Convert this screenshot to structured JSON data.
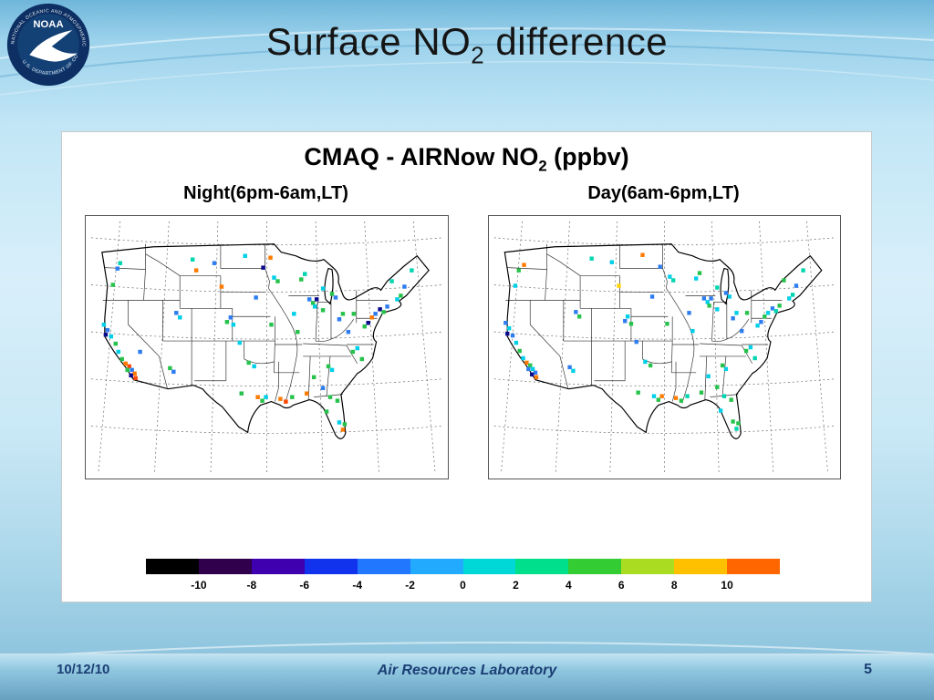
{
  "slide": {
    "title_prefix": "Surface NO",
    "title_sub": "2",
    "title_suffix": " difference"
  },
  "logo": {
    "text": "NOAA",
    "ring_top": "NATIONAL OCEANIC AND ATMOSPHERIC ADMINISTRATION",
    "ring_bottom": "U.S. DEPARTMENT OF COMMERCE"
  },
  "figure": {
    "title_prefix": "CMAQ - AIRNow NO",
    "title_sub": "2",
    "title_suffix": " (ppbv)"
  },
  "footer": {
    "date": "10/12/10",
    "center": "Air Resources Laboratory",
    "page": "5"
  },
  "chart_data": {
    "type": "scatter",
    "title": "CMAQ - AIRNow NO2 (ppbv)",
    "panels": [
      {
        "id": "night",
        "label": "Night(6pm-6am,LT)",
        "points": [
          [
            38,
            52,
            "#00d5b0"
          ],
          [
            35,
            58,
            "#2e7df0"
          ],
          [
            30,
            76,
            "#27c24c"
          ],
          [
            20,
            120,
            "#00cfe8"
          ],
          [
            24,
            126,
            "#2e7df0"
          ],
          [
            22,
            131,
            "#0a0a8c"
          ],
          [
            28,
            133,
            "#00cfe8"
          ],
          [
            33,
            141,
            "#27c24c"
          ],
          [
            36,
            150,
            "#00cfe8"
          ],
          [
            40,
            158,
            "#27c24c"
          ],
          [
            44,
            163,
            "#ff7a00"
          ],
          [
            48,
            166,
            "#ff4500"
          ],
          [
            46,
            170,
            "#27c24c"
          ],
          [
            51,
            170,
            "#2e7df0"
          ],
          [
            54,
            174,
            "#ff7a00"
          ],
          [
            50,
            176,
            "#0a0a8c"
          ],
          [
            55,
            179,
            "#ff4500"
          ],
          [
            60,
            150,
            "#2e7df0"
          ],
          [
            93,
            168,
            "#27c24c"
          ],
          [
            97,
            172,
            "#2e7df0"
          ],
          [
            100,
            107,
            "#2e7df0"
          ],
          [
            104,
            112,
            "#00cfe8"
          ],
          [
            160,
            112,
            "#2e7df0"
          ],
          [
            156,
            117,
            "#27c24c"
          ],
          [
            163,
            120,
            "#00cfe8"
          ],
          [
            118,
            48,
            "#00d5b0"
          ],
          [
            122,
            60,
            "#ff7a00"
          ],
          [
            142,
            52,
            "#2e7df0"
          ],
          [
            176,
            44,
            "#00cfe8"
          ],
          [
            196,
            57,
            "#0a0a8c"
          ],
          [
            204,
            46,
            "#ff7a00"
          ],
          [
            208,
            68,
            "#00cfe8"
          ],
          [
            212,
            72,
            "#27c24c"
          ],
          [
            188,
            90,
            "#2e7df0"
          ],
          [
            150,
            78,
            "#ff7a00"
          ],
          [
            205,
            120,
            "#27c24c"
          ],
          [
            234,
            128,
            "#27c24c"
          ],
          [
            230,
            108,
            "#00cfe8"
          ],
          [
            247,
            92,
            "#2e7df0"
          ],
          [
            251,
            96,
            "#27c24c"
          ],
          [
            255,
            92,
            "#0a0a8c"
          ],
          [
            253,
            100,
            "#00cfe8"
          ],
          [
            262,
            104,
            "#27c24c"
          ],
          [
            170,
            140,
            "#00cfe8"
          ],
          [
            180,
            162,
            "#27c24c"
          ],
          [
            186,
            166,
            "#00cfe8"
          ],
          [
            172,
            196,
            "#27c24c"
          ],
          [
            190,
            200,
            "#ff7a00"
          ],
          [
            195,
            204,
            "#27c24c"
          ],
          [
            199,
            200,
            "#00cfe8"
          ],
          [
            215,
            202,
            "#ff7a00"
          ],
          [
            221,
            205,
            "#ff4500"
          ],
          [
            228,
            200,
            "#27c24c"
          ],
          [
            244,
            196,
            "#ff7a00"
          ],
          [
            252,
            178,
            "#27c24c"
          ],
          [
            268,
            166,
            "#27c24c"
          ],
          [
            272,
            170,
            "#00cfe8"
          ],
          [
            262,
            190,
            "#2e7df0"
          ],
          [
            270,
            200,
            "#27c24c"
          ],
          [
            278,
            204,
            "#27c24c"
          ],
          [
            266,
            216,
            "#27c24c"
          ],
          [
            280,
            228,
            "#00cfe8"
          ],
          [
            284,
            236,
            "#ff7a00"
          ],
          [
            286,
            230,
            "#27c24c"
          ],
          [
            295,
            150,
            "#27c24c"
          ],
          [
            300,
            146,
            "#00cfe8"
          ],
          [
            305,
            158,
            "#27c24c"
          ],
          [
            290,
            128,
            "#2e7df0"
          ],
          [
            308,
            122,
            "#27c24c"
          ],
          [
            312,
            118,
            "#0a0a8c"
          ],
          [
            316,
            112,
            "#ff7a00"
          ],
          [
            320,
            108,
            "#2e7df0"
          ],
          [
            325,
            103,
            "#0a0a8c"
          ],
          [
            329,
            106,
            "#27c24c"
          ],
          [
            333,
            100,
            "#2e7df0"
          ],
          [
            344,
            92,
            "#00cfe8"
          ],
          [
            348,
            88,
            "#27c24c"
          ],
          [
            352,
            78,
            "#2e7df0"
          ],
          [
            338,
            72,
            "#00d5b0"
          ],
          [
            360,
            60,
            "#00d5b0"
          ],
          [
            284,
            108,
            "#27c24c"
          ],
          [
            280,
            114,
            "#2e7df0"
          ],
          [
            296,
            108,
            "#27c24c"
          ],
          [
            276,
            90,
            "#2e7df0"
          ],
          [
            272,
            86,
            "#27c24c"
          ],
          [
            262,
            80,
            "#00cfe8"
          ],
          [
            238,
            70,
            "#27c24c"
          ],
          [
            242,
            64,
            "#00d5b0"
          ]
        ]
      },
      {
        "id": "day",
        "label": "Day(6am-6pm,LT)",
        "points": [
          [
            40,
            54,
            "#ff7a00"
          ],
          [
            34,
            60,
            "#27c24c"
          ],
          [
            30,
            77,
            "#00cfe8"
          ],
          [
            19,
            118,
            "#2e7df0"
          ],
          [
            23,
            124,
            "#00cfe8"
          ],
          [
            21,
            130,
            "#0a0a8c"
          ],
          [
            27,
            132,
            "#2e7df0"
          ],
          [
            31,
            140,
            "#00cfe8"
          ],
          [
            35,
            149,
            "#27c24c"
          ],
          [
            39,
            157,
            "#00cfe8"
          ],
          [
            43,
            162,
            "#ff7a00"
          ],
          [
            47,
            165,
            "#27c24c"
          ],
          [
            45,
            169,
            "#2e7df0"
          ],
          [
            50,
            169,
            "#00cfe8"
          ],
          [
            53,
            173,
            "#2e7df0"
          ],
          [
            49,
            175,
            "#0a0a8c"
          ],
          [
            54,
            178,
            "#ff7a00"
          ],
          [
            92,
            167,
            "#2e7df0"
          ],
          [
            96,
            171,
            "#00cfe8"
          ],
          [
            99,
            106,
            "#2e7df0"
          ],
          [
            103,
            111,
            "#27c24c"
          ],
          [
            158,
            111,
            "#00cfe8"
          ],
          [
            155,
            116,
            "#2e7df0"
          ],
          [
            162,
            119,
            "#27c24c"
          ],
          [
            117,
            47,
            "#00d5b0"
          ],
          [
            140,
            51,
            "#00cfe8"
          ],
          [
            175,
            43,
            "#ff7a00"
          ],
          [
            195,
            56,
            "#2e7df0"
          ],
          [
            206,
            67,
            "#00cfe8"
          ],
          [
            210,
            71,
            "#00d5b0"
          ],
          [
            186,
            89,
            "#2e7df0"
          ],
          [
            148,
            77,
            "#ffd400"
          ],
          [
            203,
            119,
            "#27c24c"
          ],
          [
            232,
            127,
            "#00cfe8"
          ],
          [
            228,
            107,
            "#2e7df0"
          ],
          [
            245,
            91,
            "#2e7df0"
          ],
          [
            249,
            95,
            "#00cfe8"
          ],
          [
            253,
            91,
            "#2e7df0"
          ],
          [
            251,
            99,
            "#27c24c"
          ],
          [
            260,
            103,
            "#00cfe8"
          ],
          [
            168,
            139,
            "#2e7df0"
          ],
          [
            178,
            161,
            "#00cfe8"
          ],
          [
            184,
            165,
            "#27c24c"
          ],
          [
            170,
            195,
            "#27c24c"
          ],
          [
            188,
            199,
            "#00cfe8"
          ],
          [
            193,
            203,
            "#27c24c"
          ],
          [
            197,
            199,
            "#ff7a00"
          ],
          [
            213,
            201,
            "#ff7a00"
          ],
          [
            219,
            204,
            "#27c24c"
          ],
          [
            226,
            199,
            "#00d5b0"
          ],
          [
            242,
            195,
            "#27c24c"
          ],
          [
            250,
            177,
            "#00cfe8"
          ],
          [
            266,
            165,
            "#27c24c"
          ],
          [
            270,
            169,
            "#00cfe8"
          ],
          [
            260,
            189,
            "#27c24c"
          ],
          [
            268,
            199,
            "#00d5b0"
          ],
          [
            276,
            203,
            "#27c24c"
          ],
          [
            264,
            215,
            "#00cfe8"
          ],
          [
            278,
            227,
            "#27c24c"
          ],
          [
            282,
            235,
            "#00d5b0"
          ],
          [
            284,
            229,
            "#27c24c"
          ],
          [
            293,
            149,
            "#27c24c"
          ],
          [
            298,
            145,
            "#00cfe8"
          ],
          [
            303,
            157,
            "#00d5b0"
          ],
          [
            288,
            127,
            "#2e7df0"
          ],
          [
            306,
            121,
            "#00cfe8"
          ],
          [
            310,
            117,
            "#2e7df0"
          ],
          [
            314,
            111,
            "#27c24c"
          ],
          [
            318,
            107,
            "#00cfe8"
          ],
          [
            323,
            102,
            "#2e7df0"
          ],
          [
            327,
            105,
            "#00d5b0"
          ],
          [
            331,
            99,
            "#27c24c"
          ],
          [
            342,
            91,
            "#00cfe8"
          ],
          [
            346,
            87,
            "#00d5b0"
          ],
          [
            350,
            77,
            "#2e7df0"
          ],
          [
            336,
            71,
            "#27c24c"
          ],
          [
            358,
            60,
            "#00d5b0"
          ],
          [
            282,
            107,
            "#00cfe8"
          ],
          [
            278,
            113,
            "#2e7df0"
          ],
          [
            294,
            107,
            "#27c24c"
          ],
          [
            274,
            89,
            "#00cfe8"
          ],
          [
            270,
            85,
            "#2e7df0"
          ],
          [
            260,
            79,
            "#00d5b0"
          ],
          [
            236,
            69,
            "#00cfe8"
          ],
          [
            240,
            63,
            "#27c24c"
          ]
        ]
      }
    ],
    "colorbar": {
      "min": -10,
      "max": 10,
      "units": "ppbv",
      "ticks": [
        "-10",
        "-8",
        "-6",
        "-4",
        "-2",
        "0",
        "2",
        "4",
        "6",
        "8",
        "10"
      ],
      "segments": [
        "#000000",
        "#30004d",
        "#3f00b0",
        "#1133ee",
        "#2277ff",
        "#22aaff",
        "#00d8d8",
        "#00e08c",
        "#33cc33",
        "#aadd22",
        "#ffc000",
        "#ff6600"
      ]
    }
  }
}
